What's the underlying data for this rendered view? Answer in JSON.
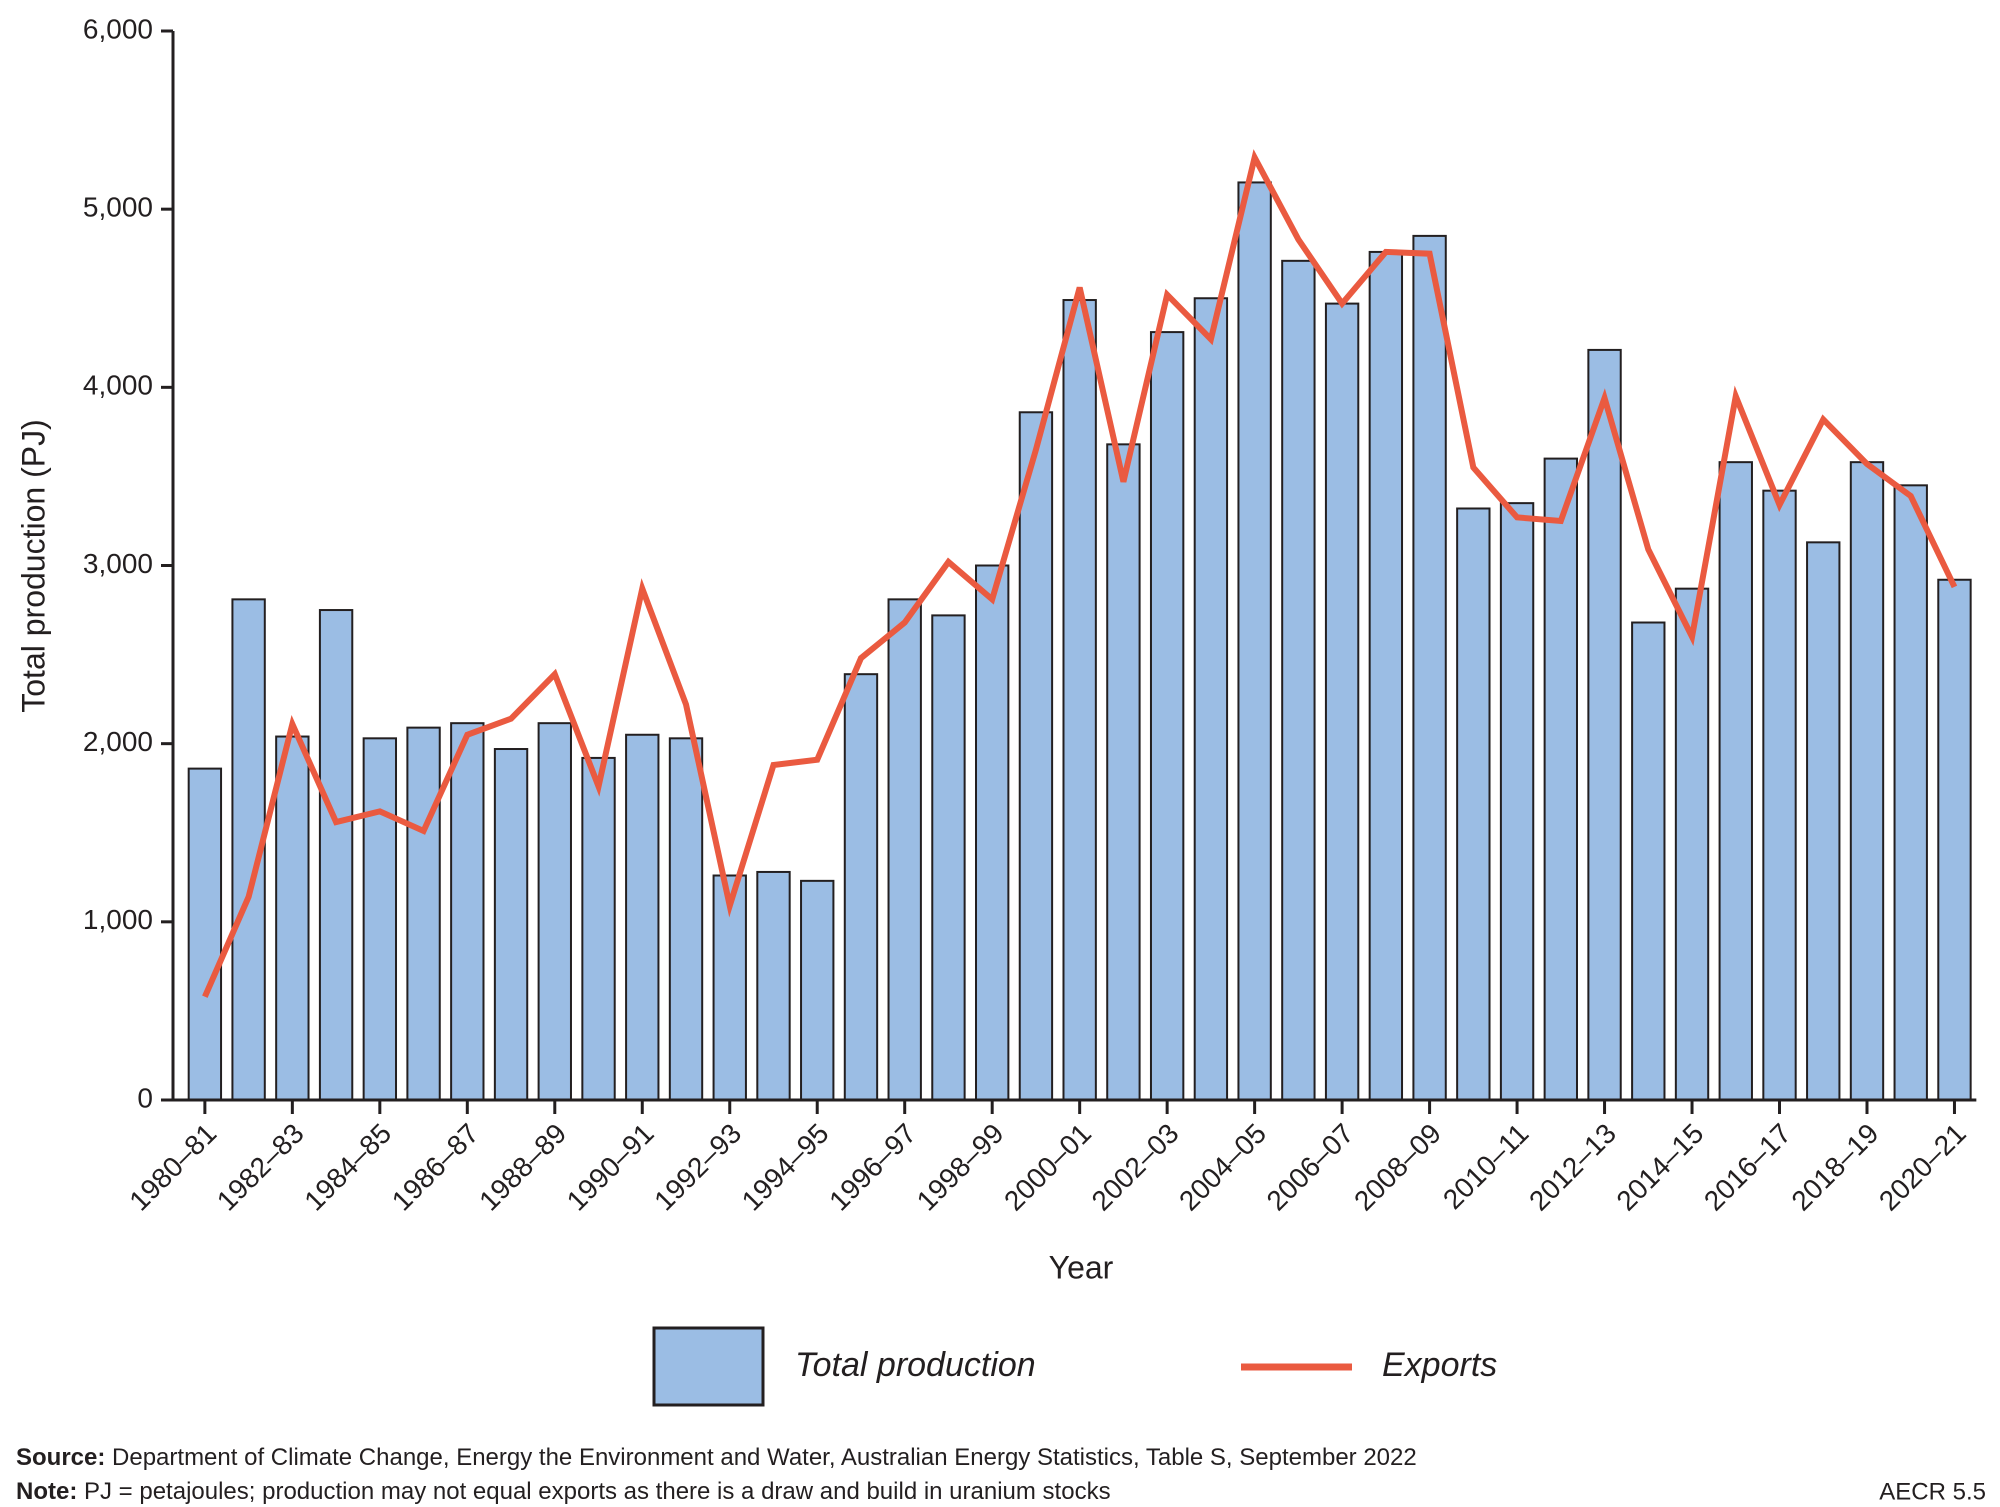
{
  "chart_data": {
    "type": "bar_line",
    "x_label": "Year",
    "y_label": "Total production (PJ)",
    "categories": [
      "1980–81",
      null,
      "1982–83",
      null,
      "1984–85",
      null,
      "1986–87",
      null,
      "1988–89",
      null,
      "1990–91",
      null,
      "1992–93",
      null,
      "1994–95",
      null,
      "1996–97",
      null,
      "1998–99",
      null,
      "2000–01",
      null,
      "2002–03",
      null,
      "2004–05",
      null,
      "2006–07",
      null,
      "2008–09",
      null,
      "2010–11",
      null,
      "2012–13",
      null,
      "2014–15",
      null,
      "2016–17",
      null,
      "2018–19",
      null,
      "2020–21"
    ],
    "series": [
      {
        "name": "Total production",
        "type": "bar",
        "color": "#9bbde4",
        "values": [
          1860,
          2810,
          2040,
          2750,
          2030,
          2090,
          2115,
          1970,
          2115,
          1920,
          2050,
          2030,
          1260,
          1280,
          1230,
          2390,
          2810,
          2720,
          3000,
          3860,
          4490,
          3680,
          4310,
          4500,
          5150,
          4710,
          4470,
          4760,
          4850,
          3320,
          3350,
          3600,
          4210,
          2680,
          2870,
          3580,
          3420,
          3130,
          3580,
          3450,
          2920
        ]
      },
      {
        "name": "Exports",
        "type": "line",
        "color": "#ea5a40",
        "values": [
          580,
          1140,
          2110,
          1560,
          1620,
          1510,
          2050,
          2140,
          2390,
          1760,
          2870,
          2220,
          1090,
          1880,
          1910,
          2480,
          2680,
          3020,
          2810,
          3650,
          4560,
          3470,
          4520,
          4270,
          5290,
          4830,
          4470,
          4760,
          4750,
          3550,
          3270,
          3250,
          3940,
          3090,
          2600,
          3950,
          3340,
          3820,
          3570,
          3390,
          2880
        ]
      }
    ],
    "ylim": [
      0,
      6000
    ],
    "yticks": [
      0,
      {
        "value": 1000,
        "label": "1,000"
      },
      {
        "value": 2000,
        "label": "2,000"
      },
      {
        "value": 3000,
        "label": "3,000"
      },
      {
        "value": 4000,
        "label": "4,000"
      },
      {
        "value": 5000,
        "label": "5,000"
      },
      {
        "value": 6000,
        "label": "6,000"
      }
    ],
    "grid": false,
    "source_label": "Source:",
    "source": "Department of Climate Change, Energy the Environment and Water, Australian Energy Statistics, Table S, September 2022",
    "note_label": "Note:",
    "note": "PJ = petajoules; production may not equal exports as there is a draw and build in uranium stocks",
    "figure_id": "AECR 5.5"
  }
}
